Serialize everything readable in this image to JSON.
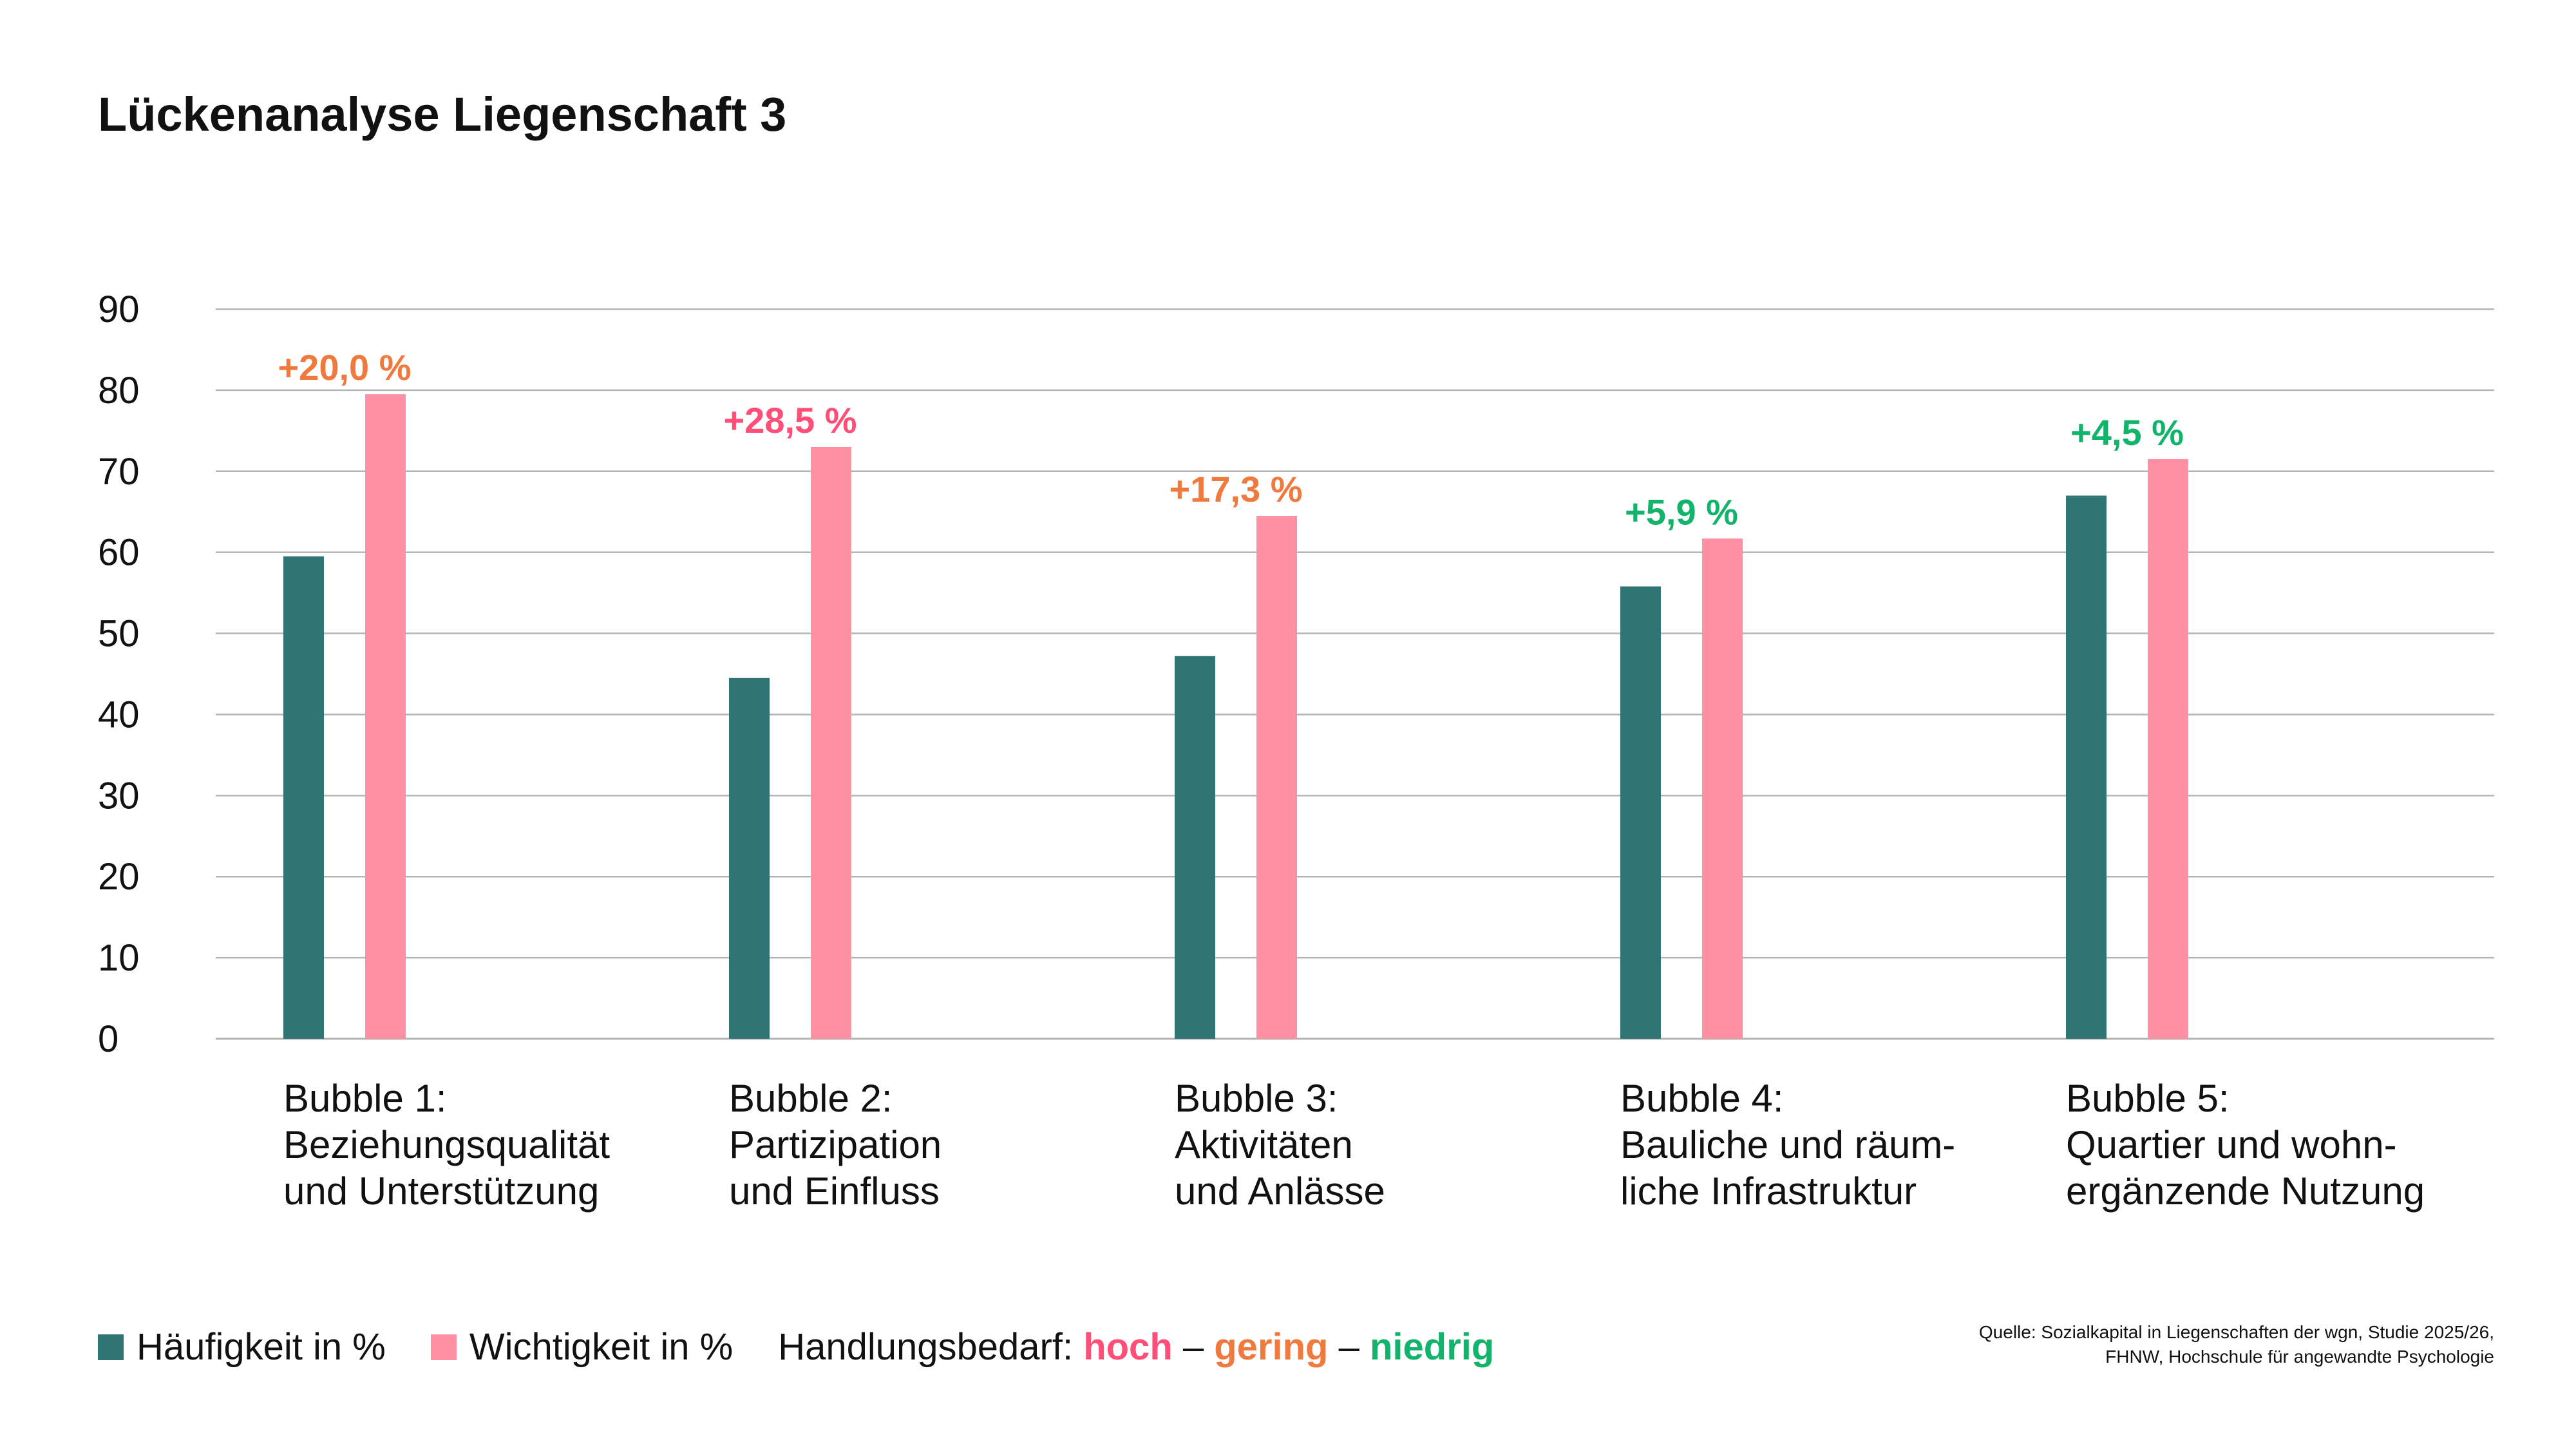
{
  "title": "Lückenanalyse Liegenschaft 3",
  "colors": {
    "frequency": "#2e7573",
    "importance": "#ff8fa3",
    "level_high": "#ff4f79",
    "level_medium": "#f07a3e",
    "level_low": "#12b36b",
    "grid": "#b4b4b4"
  },
  "chart_data": {
    "type": "bar",
    "title": "Lückenanalyse Liegenschaft 3",
    "xlabel": "",
    "ylabel": "",
    "ylim": [
      0,
      90
    ],
    "yticks": [
      0,
      10,
      20,
      30,
      40,
      50,
      60,
      70,
      80,
      90
    ],
    "grid": true,
    "legend_position": "bottom-left",
    "categories": [
      [
        "Bubble 1:",
        "Beziehungsqualität",
        "und Unterstützung"
      ],
      [
        "Bubble 2:",
        "Partizipation",
        "und Einfluss"
      ],
      [
        "Bubble 3:",
        "Aktivitäten",
        "und Anlässe"
      ],
      [
        "Bubble 4:",
        "Bauliche und räum-",
        "liche Infrastruktur"
      ],
      [
        "Bubble 5:",
        "Quartier und wohn-",
        "ergänzende Nutzung"
      ]
    ],
    "series": [
      {
        "name": "Häufigkeit in %",
        "values": [
          59.5,
          44.5,
          47.2,
          55.8,
          67.0
        ]
      },
      {
        "name": "Wichtigkeit in %",
        "values": [
          79.5,
          73.0,
          64.5,
          61.7,
          71.5
        ]
      }
    ],
    "annotations": [
      {
        "text": "+20,0 %",
        "level": "medium"
      },
      {
        "text": "+28,5 %",
        "level": "high"
      },
      {
        "text": "+17,3 %",
        "level": "medium"
      },
      {
        "text": "+5,9 %",
        "level": "low"
      },
      {
        "text": "+4,5 %",
        "level": "low"
      }
    ]
  },
  "legend": {
    "frequency_label": "Häufigkeit in %",
    "importance_label": "Wichtigkeit in %",
    "action_label": "Handlungsbedarf: ",
    "high": "hoch",
    "sep1": " – ",
    "medium": "gering",
    "sep2": " – ",
    "low": "niedrig"
  },
  "source": {
    "line1": "Quelle: Sozialkapital in Liegenschaften der wgn, Studie 2025/26,",
    "line2": "FHNW, Hochschule für angewandte Psychologie"
  }
}
